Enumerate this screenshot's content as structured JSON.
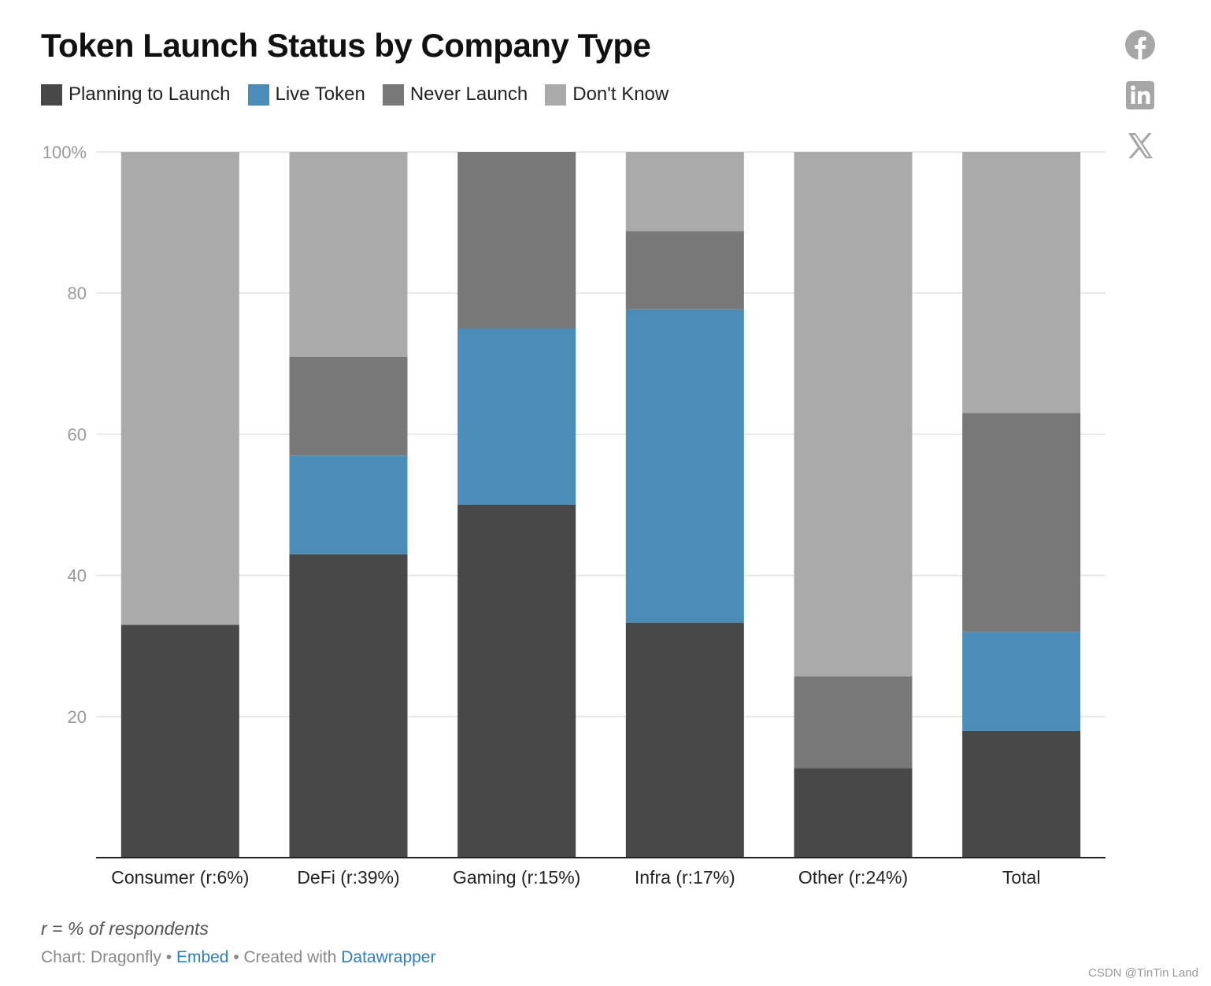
{
  "title": "Token Launch Status by Company Type",
  "legend": [
    {
      "label": "Planning to Launch",
      "color": "#484848"
    },
    {
      "label": "Live Token",
      "color": "#4b8db8"
    },
    {
      "label": "Never Launch",
      "color": "#787878"
    },
    {
      "label": "Don't Know",
      "color": "#aaaaaa"
    }
  ],
  "social_icons": [
    "facebook-icon",
    "linkedin-icon",
    "x-icon"
  ],
  "chart_data": {
    "type": "bar",
    "stacked": true,
    "categories": [
      "Consumer (r:6%)",
      "DeFi (r:39%)",
      "Gaming (r:15%)",
      "Infra (r:17%)",
      "Other (r:24%)",
      "Total"
    ],
    "series": [
      {
        "name": "Planning to Launch",
        "color": "#484848",
        "values": [
          33,
          43,
          50,
          33.3,
          12.7,
          18
        ]
      },
      {
        "name": "Live Token",
        "color": "#4b8db8",
        "values": [
          0,
          14,
          25,
          44.4,
          0,
          14
        ]
      },
      {
        "name": "Never Launch",
        "color": "#787878",
        "values": [
          0,
          14,
          25,
          11.1,
          13,
          31
        ]
      },
      {
        "name": "Don't Know",
        "color": "#aaaaaa",
        "values": [
          67,
          29,
          0,
          11.2,
          74.3,
          37
        ]
      }
    ],
    "ylim": [
      0,
      100
    ],
    "yticks": [
      {
        "value": 20,
        "label": "20"
      },
      {
        "value": 40,
        "label": "40"
      },
      {
        "value": 60,
        "label": "60"
      },
      {
        "value": 80,
        "label": "80"
      },
      {
        "value": 100,
        "label": "100%"
      }
    ],
    "grid": true,
    "legend_position": "top-left"
  },
  "footer": {
    "note": "r = % of respondents",
    "source_prefix": "Chart: Dragonfly",
    "separator": " • ",
    "embed_label": "Embed",
    "created_with_label": "Created with",
    "datawrapper_label": "Datawrapper"
  },
  "watermark": "CSDN @TinTin Land"
}
